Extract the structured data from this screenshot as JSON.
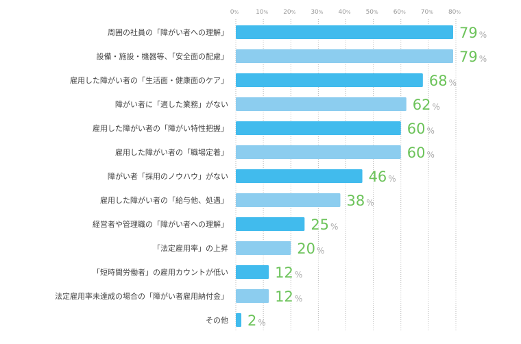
{
  "chart_data": {
    "type": "bar",
    "orientation": "horizontal",
    "title": "",
    "xlabel": "",
    "ylabel": "",
    "xlim": [
      0,
      80
    ],
    "grid": true,
    "unit": "%",
    "tick_labels": [
      "0",
      "10",
      "20",
      "30",
      "40",
      "50",
      "60",
      "70",
      "80"
    ],
    "categories": [
      "周囲の社員の「障がい者への理解」",
      "設備・施設・機器等、「安全面の配慮」",
      "雇用した障がい者の「生活面・健康面のケア」",
      "障がい者に「適した業務」がない",
      "雇用した障がい者の「障がい特性把握」",
      "雇用した障がい者の「職場定着」",
      "障がい者「採用のノウハウ」がない",
      "雇用した障がい者の「給与他、処遇」",
      "経営者や管理職の「障がい者への理解」",
      "「法定雇用率」の上昇",
      "「短時間労働者」の雇用カウントが低い",
      "法定雇用率未達成の場合の「障がい者雇用納付金」",
      "その他"
    ],
    "values": [
      79,
      79,
      68,
      62,
      60,
      60,
      46,
      38,
      25,
      20,
      12,
      12,
      2
    ],
    "colors": {
      "dark": "#41bbed",
      "light": "#8ccdef",
      "value_text": "#6cc35a",
      "grid": "#bbbbbb"
    }
  }
}
